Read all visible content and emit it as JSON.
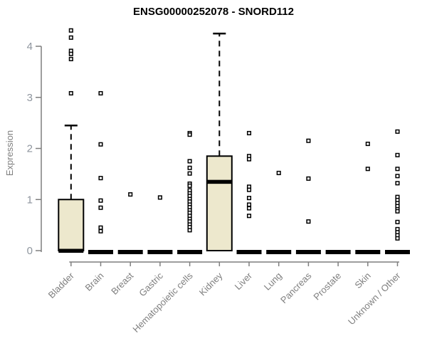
{
  "chart_data": {
    "type": "boxplot",
    "title": "ENSG00000252078 - SNORD112",
    "ylabel": "Expression",
    "xlabel": "",
    "ylim": [
      0,
      4.4
    ],
    "yticks": [
      0,
      1,
      2,
      3,
      4
    ],
    "grid": false,
    "legend": "none",
    "style": {
      "box_fill": "#EDE8CD",
      "box_stroke": "#000000",
      "axis_color": "#7F7F7F",
      "tick_label_color": "#8E959E",
      "category_label_color": "#7F7F7F",
      "marker": "open-square"
    },
    "categories": [
      "Bladder",
      "Brain",
      "Breast",
      "Gastric",
      "Hematopoietic cells",
      "Kidney",
      "Liver",
      "Lung",
      "Pancreas",
      "Prostate",
      "Skin",
      "Unknown / Other"
    ],
    "boxes": [
      {
        "category": "Bladder",
        "q1": 0,
        "median": 0,
        "q3": 1.0,
        "whisker_low": 0,
        "whisker_high": 2.45,
        "outliers": [
          4.31,
          4.17,
          3.91,
          3.85,
          3.75,
          3.08
        ]
      },
      {
        "category": "Brain",
        "q1": 0,
        "median": 0,
        "q3": 0,
        "whisker_low": 0,
        "whisker_high": 0,
        "outliers": [
          3.08,
          2.08,
          1.42,
          0.98,
          0.84,
          0.45,
          0.38
        ]
      },
      {
        "category": "Breast",
        "q1": 0,
        "median": 0,
        "q3": 0,
        "whisker_low": 0,
        "whisker_high": 0,
        "outliers": [
          1.1
        ]
      },
      {
        "category": "Gastric",
        "q1": 0,
        "median": 0,
        "q3": 0,
        "whisker_low": 0,
        "whisker_high": 0,
        "outliers": [
          1.04
        ]
      },
      {
        "category": "Hematopoietic cells",
        "q1": 0,
        "median": 0,
        "q3": 0,
        "whisker_low": 0,
        "whisker_high": 0,
        "outliers": [
          2.3,
          2.27,
          1.75,
          1.62,
          1.51,
          1.31,
          1.27,
          1.18,
          1.12,
          1.07,
          1.01,
          0.96,
          0.9,
          0.85,
          0.79,
          0.74,
          0.68,
          0.62,
          0.57,
          0.51,
          0.46,
          0.4
        ]
      },
      {
        "category": "Kidney",
        "q1": 0,
        "median": 1.35,
        "q3": 1.85,
        "whisker_low": 0,
        "whisker_high": 4.25,
        "outliers": []
      },
      {
        "category": "Liver",
        "q1": 0,
        "median": 0,
        "q3": 0,
        "whisker_low": 0,
        "whisker_high": 0,
        "outliers": [
          2.3,
          1.85,
          1.79,
          1.25,
          1.19,
          1.03,
          0.9,
          0.83,
          0.68
        ]
      },
      {
        "category": "Lung",
        "q1": 0,
        "median": 0,
        "q3": 0,
        "whisker_low": 0,
        "whisker_high": 0,
        "outliers": [
          1.52
        ]
      },
      {
        "category": "Pancreas",
        "q1": 0,
        "median": 0,
        "q3": 0,
        "whisker_low": 0,
        "whisker_high": 0,
        "outliers": [
          2.15,
          1.41,
          0.57
        ]
      },
      {
        "category": "Prostate",
        "q1": 0,
        "median": 0,
        "q3": 0,
        "whisker_low": 0,
        "whisker_high": 0,
        "outliers": []
      },
      {
        "category": "Skin",
        "q1": 0,
        "median": 0,
        "q3": 0,
        "whisker_low": 0,
        "whisker_high": 0,
        "outliers": [
          2.09,
          1.6
        ]
      },
      {
        "category": "Unknown / Other",
        "q1": 0,
        "median": 0,
        "q3": 0,
        "whisker_low": 0,
        "whisker_high": 0,
        "outliers": [
          2.33,
          1.87,
          1.6,
          1.46,
          1.32,
          1.05,
          0.99,
          0.93,
          0.87,
          0.81,
          0.77,
          0.56,
          0.42,
          0.36,
          0.3,
          0.24
        ]
      }
    ]
  }
}
